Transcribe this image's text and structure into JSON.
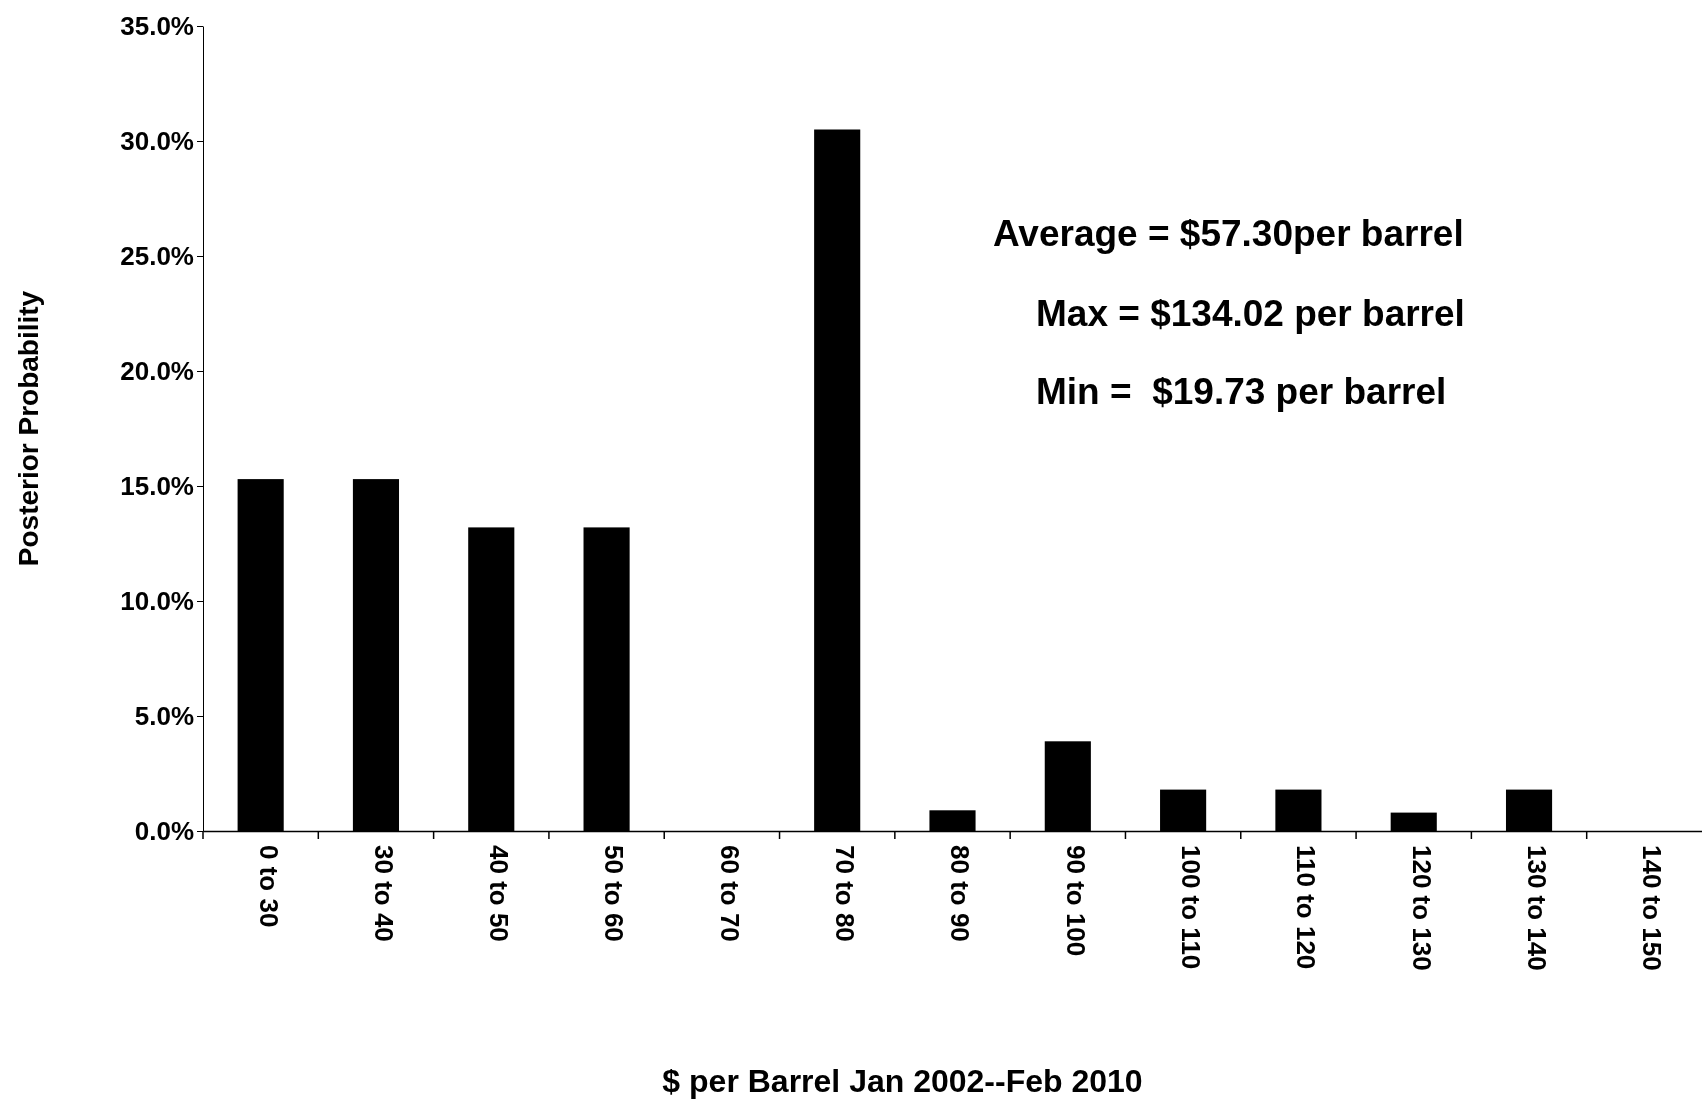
{
  "chart_data": {
    "type": "bar",
    "xlabel": "$ per Barrel Jan 2002--Feb 2010",
    "ylabel": "Posterior Probability",
    "categories": [
      "0 to 30",
      "30 to 40",
      "40 to 50",
      "50 to 60",
      "60 to 70",
      "70 to 80",
      "80 to 90",
      "90 to 100",
      "100 to 110",
      "110 to 120",
      "120 to 130",
      "130 to 140",
      "140 to 150"
    ],
    "values": [
      15.3,
      15.3,
      13.2,
      13.2,
      0,
      30.5,
      0.9,
      3.9,
      1.8,
      1.8,
      0.8,
      1.8,
      0
    ],
    "color": "#000000",
    "ylim": [
      0,
      35
    ],
    "yticks": [
      {
        "value": 0,
        "label": "0.0%"
      },
      {
        "value": 5,
        "label": "5.0%"
      },
      {
        "value": 10,
        "label": "10.0%"
      },
      {
        "value": 15,
        "label": "15.0%"
      },
      {
        "value": 20,
        "label": "20.0%"
      },
      {
        "value": 25,
        "label": "25.0%"
      },
      {
        "value": 30,
        "label": "30.0%"
      },
      {
        "value": 35,
        "label": "35.0%"
      }
    ],
    "annotations": [
      "Average = $57.30per barrel",
      "Max = $134.02 per barrel",
      "Min =  $19.73 per barrel"
    ]
  }
}
